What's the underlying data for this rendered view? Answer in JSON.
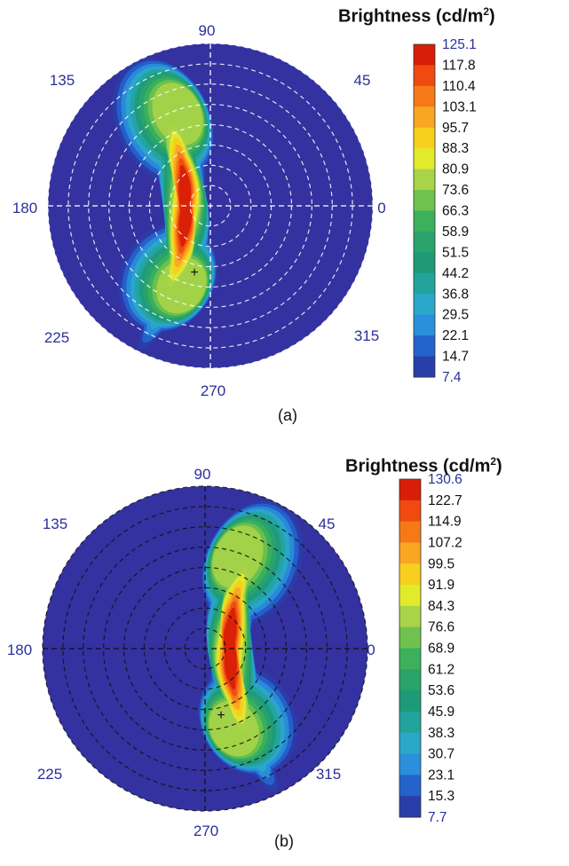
{
  "chart_data": [
    {
      "type": "polar-contour",
      "caption": "(a)",
      "colorbar_title": "Brightness (cd/m",
      "colorbar_title_sup": "2",
      "colorbar_title_close": ")",
      "colorbar_ticks": [
        "125.1",
        "117.8",
        "110.4",
        "103.1",
        "95.7",
        "88.3",
        "80.9",
        "73.6",
        "66.3",
        "58.9",
        "51.5",
        "44.2",
        "36.8",
        "29.5",
        "22.1",
        "14.7",
        "7.4"
      ],
      "angle_labels": [
        "90",
        "45",
        "0",
        "315",
        "270",
        "225",
        "180",
        "135"
      ],
      "radial_ring_count": 8,
      "grid": true,
      "grid_color": "#ffffff",
      "colors": [
        "#d81e06",
        "#f04a10",
        "#f57a17",
        "#f9a623",
        "#f7cf1e",
        "#e2ea2c",
        "#a9d447",
        "#6fc24e",
        "#3cb05b",
        "#2aa36a",
        "#1e9a79",
        "#22a49c",
        "#2aa7c9",
        "#2a8fdc",
        "#2563cc",
        "#2a3ea9",
        "#3a34a4"
      ],
      "background_color": "#3431a0"
    },
    {
      "type": "polar-contour",
      "caption": "(b)",
      "colorbar_title": "Brightness (cd/m",
      "colorbar_title_sup": "2",
      "colorbar_title_close": ")",
      "colorbar_ticks": [
        "130.6",
        "122.7",
        "114.9",
        "107.2",
        "99.5",
        "91.9",
        "84.3",
        "76.6",
        "68.9",
        "61.2",
        "53.6",
        "45.9",
        "38.3",
        "30.7",
        "23.1",
        "15.3",
        "7.7"
      ],
      "angle_labels": [
        "90",
        "45",
        "0",
        "315",
        "270",
        "225",
        "180",
        "135"
      ],
      "radial_ring_count": 8,
      "grid": true,
      "grid_color": "#111111",
      "colors": [
        "#d81e06",
        "#f04a10",
        "#f57a17",
        "#f9a623",
        "#f7cf1e",
        "#e2ea2c",
        "#a9d447",
        "#6fc24e",
        "#3cb05b",
        "#2aa36a",
        "#1e9a79",
        "#22a49c",
        "#2aa7c9",
        "#2a8fdc",
        "#2563cc",
        "#2a3ea9",
        "#3a34a4"
      ],
      "background_color": "#3431a0"
    }
  ]
}
